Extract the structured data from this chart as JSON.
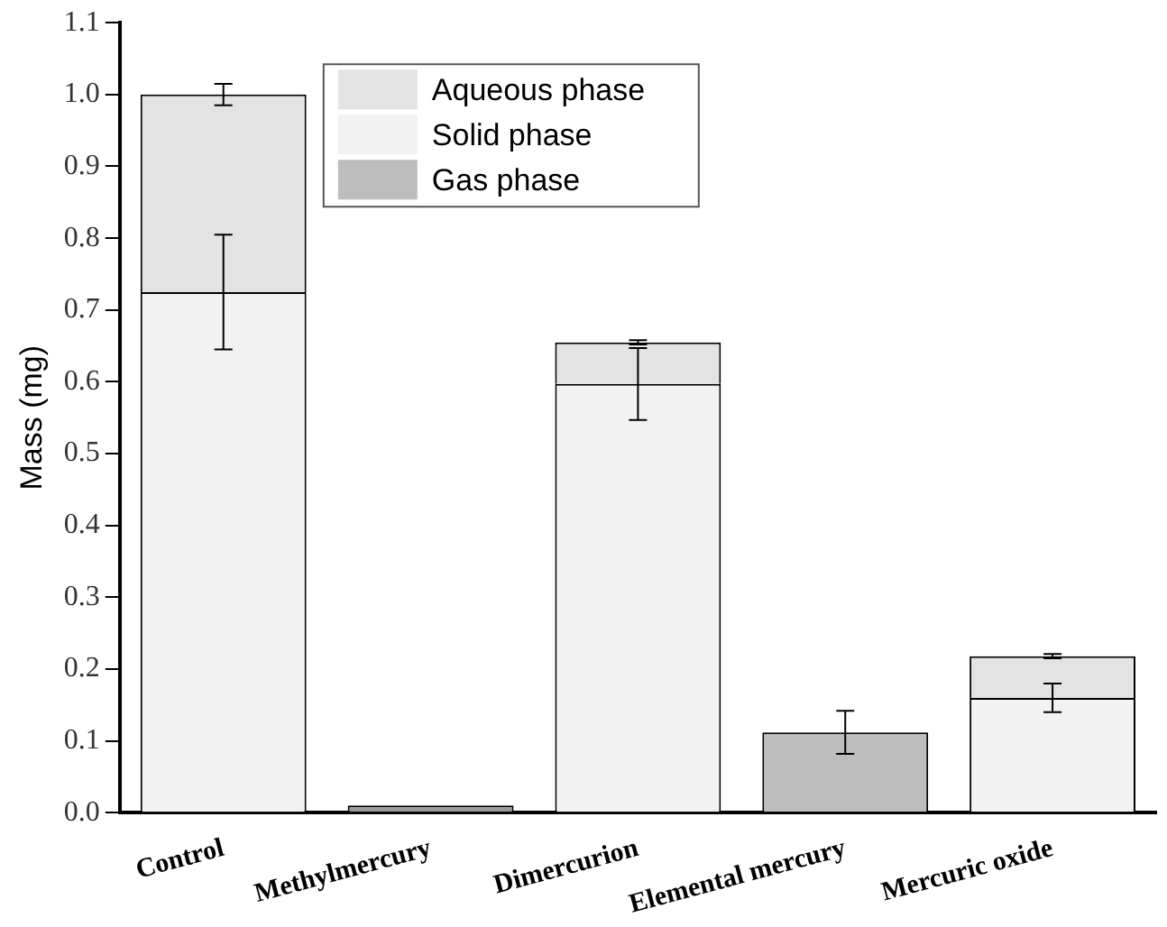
{
  "chart_data": {
    "type": "bar",
    "stacked": true,
    "ylabel": "Mass (mg)",
    "categories": [
      "Control",
      "Methylmercury",
      "Dimercurion",
      "Elemental mercury",
      "Mercuric oxide"
    ],
    "series": [
      {
        "name": "Gas phase",
        "color": "#bdbdbd",
        "values": [
          null,
          null,
          null,
          0.112,
          null
        ],
        "errors": [
          null,
          null,
          null,
          0.03,
          null
        ]
      },
      {
        "name": "Solid phase",
        "color": "#f2f2f2",
        "colors": [
          "#f2f2f2",
          "#9a9a9a",
          "#f2f2f2",
          "#f2f2f2",
          "#f2f2f2"
        ],
        "values": [
          0.725,
          0.01,
          0.597,
          null,
          0.16
        ],
        "errors": [
          0.08,
          null,
          0.05,
          null,
          0.02
        ]
      },
      {
        "name": "Aqueous phase",
        "color": "#e3e3e3",
        "values": [
          0.275,
          null,
          0.058,
          null,
          0.058
        ],
        "errors": [
          0.015,
          null,
          0.003,
          null,
          0.003
        ]
      }
    ],
    "ylim": [
      0,
      1.1
    ],
    "yticks": [
      {
        "value": 0,
        "label": "0.0"
      },
      0.1,
      0.2,
      0.3,
      0.4,
      0.5,
      0.6,
      0.7,
      0.8,
      0.9,
      {
        "value": 1,
        "label": "1.0"
      },
      1.1
    ],
    "grid": false,
    "legend": "top"
  }
}
